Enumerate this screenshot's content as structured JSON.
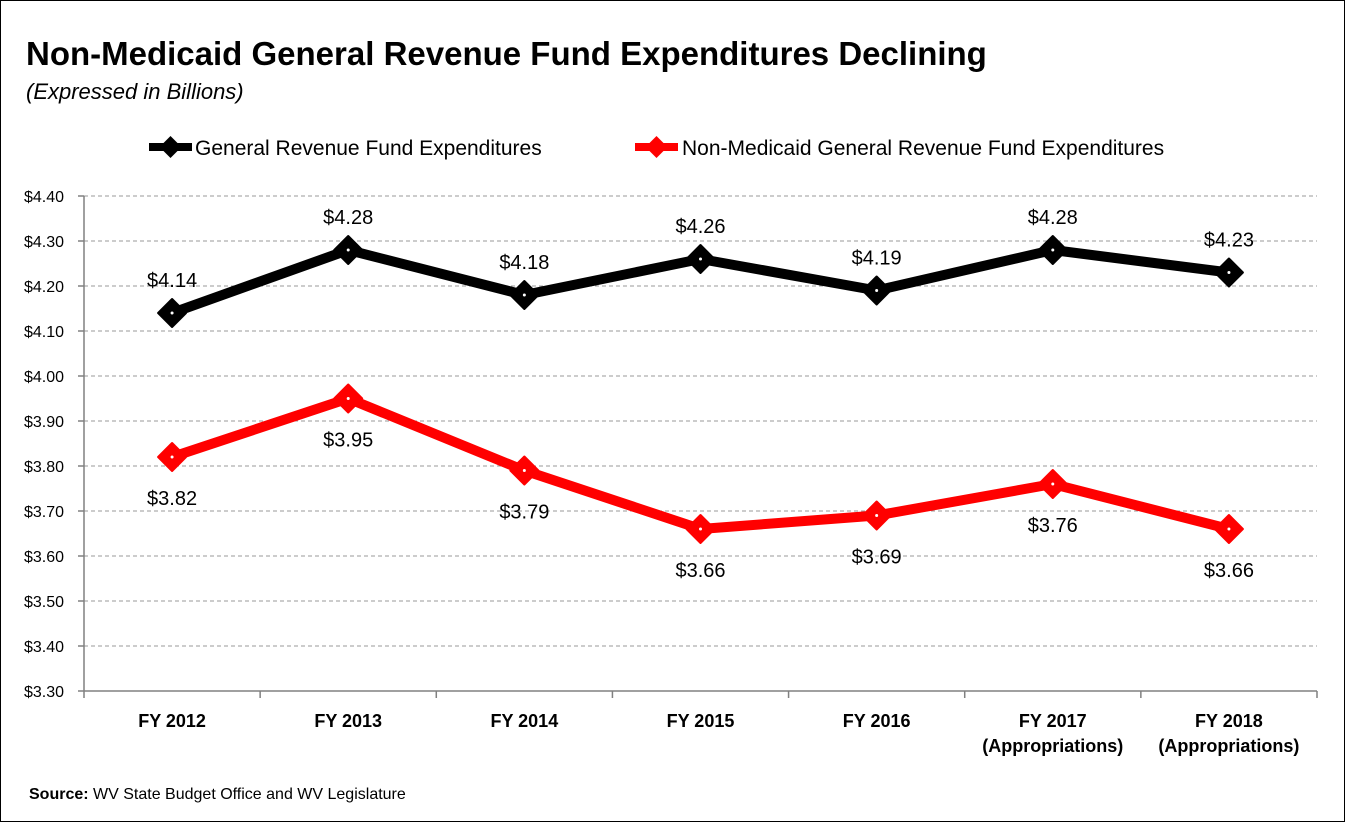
{
  "chart_data": {
    "type": "line",
    "title": "Non-Medicaid General Revenue Fund Expenditures Declining",
    "subtitle": "(Expressed in Billions)",
    "categories": [
      [
        "FY 2012"
      ],
      [
        "FY 2013"
      ],
      [
        "FY 2014"
      ],
      [
        "FY 2015"
      ],
      [
        "FY 2016"
      ],
      [
        "FY 2017",
        "(Appropriations)"
      ],
      [
        "FY 2018",
        "(Appropriations)"
      ]
    ],
    "series": [
      {
        "name": "General Revenue Fund Expenditures",
        "color": "#000000",
        "values": [
          4.14,
          4.28,
          4.18,
          4.26,
          4.19,
          4.28,
          4.23
        ],
        "labels": [
          "$4.14",
          "$4.28",
          "$4.18",
          "$4.26",
          "$4.19",
          "$4.28",
          "$4.23"
        ],
        "label_position": "above"
      },
      {
        "name": "Non-Medicaid General Revenue Fund Expenditures",
        "color": "#ff0000",
        "values": [
          3.82,
          3.95,
          3.79,
          3.66,
          3.69,
          3.76,
          3.66
        ],
        "labels": [
          "$3.82",
          "$3.95",
          "$3.79",
          "$3.66",
          "$3.69",
          "$3.76",
          "$3.66"
        ],
        "label_position": "below"
      }
    ],
    "ylim": [
      3.3,
      4.4
    ],
    "yticks": [
      3.3,
      3.4,
      3.5,
      3.6,
      3.7,
      3.8,
      3.9,
      4.0,
      4.1,
      4.2,
      4.3,
      4.4
    ],
    "ytick_labels": [
      "$3.30",
      "$3.40",
      "$3.50",
      "$3.60",
      "$3.70",
      "$3.80",
      "$3.90",
      "$4.00",
      "$4.10",
      "$4.20",
      "$4.30",
      "$4.40"
    ],
    "grid": true,
    "legend": "top"
  },
  "source": {
    "label": "Source:",
    "text": " WV State Budget Office and WV Legislature"
  }
}
